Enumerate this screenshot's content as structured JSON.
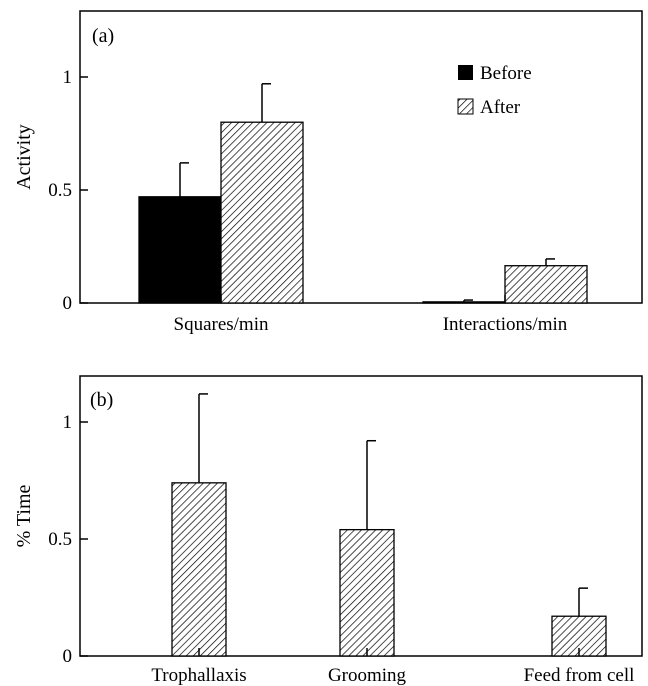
{
  "chart_data": [
    {
      "type": "bar",
      "panel_label": "(a)",
      "ylabel": "Activity",
      "ylim": [
        0,
        1.3
      ],
      "yticks": [
        0,
        0.5,
        1
      ],
      "ytick_labels": [
        "0",
        "0.5",
        "1"
      ],
      "categories": [
        "Squares/min",
        "Interactions/min"
      ],
      "series": [
        {
          "name": "Before",
          "fill": "solid",
          "values": [
            0.47,
            0.005
          ],
          "errors": [
            0.15,
            0.008
          ]
        },
        {
          "name": "After",
          "fill": "hatched",
          "values": [
            0.8,
            0.165
          ],
          "errors": [
            0.17,
            0.03
          ]
        }
      ],
      "legend_position": "top-right",
      "grid": false
    },
    {
      "type": "bar",
      "panel_label": "(b)",
      "ylabel": "% Time",
      "ylim": [
        0,
        1.3
      ],
      "yticks": [
        0,
        0.5,
        1
      ],
      "ytick_labels": [
        "0",
        "0.5",
        "1"
      ],
      "categories": [
        "Trophallaxis",
        "Grooming",
        "Feed from cell"
      ],
      "series": [
        {
          "fill": "hatched",
          "values": [
            0.74,
            0.54,
            0.17
          ],
          "errors": [
            0.38,
            0.38,
            0.12
          ]
        }
      ],
      "grid": false
    }
  ],
  "colors": {
    "bar_solid": "#000000",
    "axis": "#000000",
    "hatch": "#000000",
    "background": "#ffffff"
  }
}
